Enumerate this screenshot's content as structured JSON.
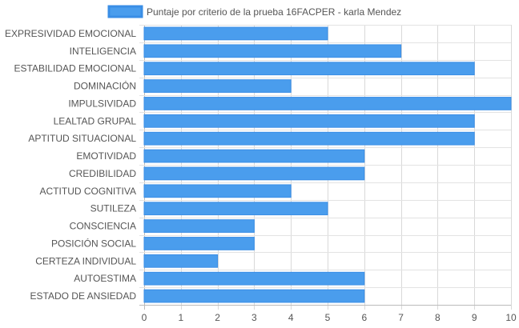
{
  "chart_data": {
    "type": "bar",
    "orientation": "horizontal",
    "categories": [
      "EXPRESIVIDAD EMOCIONAL",
      "INTELIGENCIA",
      "ESTABILIDAD EMOCIONAL",
      "DOMINACIÓN",
      "IMPULSIVIDAD",
      "LEALTAD GRUPAL",
      "APTITUD SITUACIONAL",
      "EMOTIVIDAD",
      "CREDIBILIDAD",
      "ACTITUD COGNITIVA",
      "SUTILEZA",
      "CONSCIENCIA",
      "POSICIÓN SOCIAL",
      "CERTEZA INDIVIDUAL",
      "AUTOESTIMA",
      "ESTADO DE ANSIEDAD"
    ],
    "series": [
      {
        "name": "Puntaje por criterio de la prueba 16FACPER - karla Mendez",
        "values": [
          5,
          7,
          9,
          4,
          10,
          9,
          9,
          6,
          6,
          4,
          5,
          3,
          3,
          2,
          6,
          6
        ],
        "color": "#4a9ded",
        "border_color": "#3a8ee6"
      }
    ],
    "xlim": [
      0,
      10
    ],
    "x_ticks": [
      "0",
      "1",
      "2",
      "3",
      "4",
      "5",
      "6",
      "7",
      "8",
      "9",
      "10"
    ],
    "grid": true,
    "legend_position": "top"
  }
}
